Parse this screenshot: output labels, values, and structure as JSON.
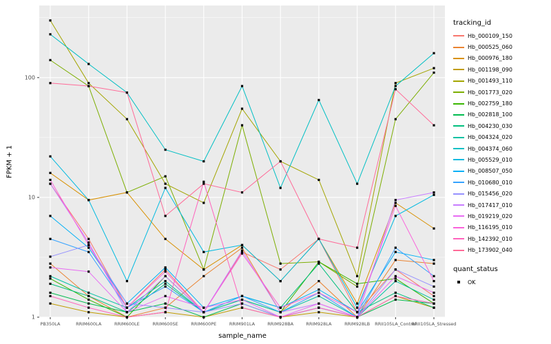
{
  "legend": {
    "color_title": "tracking_id",
    "shape_title": "quant_status",
    "shape_items": [
      {
        "label": "OK"
      }
    ]
  },
  "chart_data": {
    "type": "line",
    "title": "",
    "xlabel": "sample_name",
    "ylabel": "FPKM + 1",
    "y_scale": "log10",
    "ylim": [
      1,
      400
    ],
    "y_ticks": [
      1,
      10,
      100
    ],
    "y_minor_ticks": [
      3.1623,
      31.623,
      316.23
    ],
    "grid": true,
    "legend_position": "right",
    "panel_background": "#EBEBEB",
    "gridline_color": "#FFFFFF",
    "axis_text_color": "#4D4D4D",
    "point_shape": "square",
    "point_color": "#000000",
    "x": [
      "PB350LA",
      "RRIM600LA",
      "RRIM600LE",
      "RRIM600SE",
      "RRIM600PE",
      "RRIM901LA",
      "RRIM928BA",
      "RRIM928LA",
      "RRIM928LB",
      "RRII105LA_Control",
      "RRII105LA_Stressed"
    ],
    "series": [
      {
        "name": "Hb_000109_150",
        "color": "#F8766D",
        "values": [
          13,
          4.5,
          1.2,
          2.5,
          1.1,
          3.5,
          2.5,
          4.5,
          1.1,
          2.5,
          1.5
        ]
      },
      {
        "name": "Hb_000525_060",
        "color": "#EA8331",
        "values": [
          2.8,
          1.5,
          1.0,
          1.2,
          2.2,
          3.8,
          1.1,
          2.0,
          1.0,
          3.0,
          2.8
        ]
      },
      {
        "name": "Hb_000976_180",
        "color": "#D89000",
        "values": [
          16,
          9.5,
          11,
          4.5,
          2.5,
          4.0,
          2.0,
          4.5,
          1.3,
          9.0,
          5.5
        ]
      },
      {
        "name": "Hb_001198_090",
        "color": "#C09B00",
        "values": [
          1.3,
          1.1,
          1.0,
          1.1,
          1.0,
          1.2,
          1.0,
          1.1,
          1.0,
          1.5,
          1.2
        ]
      },
      {
        "name": "Hb_001493_110",
        "color": "#A3A500",
        "values": [
          300,
          90,
          45,
          13,
          9,
          55,
          20,
          14,
          2.2,
          90,
          120
        ]
      },
      {
        "name": "Hb_001773_020",
        "color": "#7CAE00",
        "values": [
          140,
          85,
          11,
          15,
          2.5,
          40,
          2.8,
          2.9,
          1.8,
          45,
          110
        ]
      },
      {
        "name": "Hb_002759_180",
        "color": "#39B600",
        "values": [
          2.1,
          1.4,
          1.0,
          2.2,
          1.1,
          1.4,
          1.1,
          2.9,
          1.9,
          2.1,
          1.3
        ]
      },
      {
        "name": "Hb_002818_100",
        "color": "#00BB4E",
        "values": [
          1.6,
          1.3,
          1.1,
          1.3,
          1.0,
          1.3,
          1.0,
          1.2,
          1.0,
          1.4,
          1.3
        ]
      },
      {
        "name": "Hb_004230_030",
        "color": "#00BF7D",
        "values": [
          1.9,
          1.5,
          1.1,
          1.9,
          1.1,
          1.5,
          1.2,
          2.8,
          1.1,
          1.6,
          1.2
        ]
      },
      {
        "name": "Hb_004324_020",
        "color": "#00C1A3",
        "values": [
          2.2,
          1.6,
          1.2,
          2.0,
          1.1,
          1.4,
          1.1,
          1.5,
          1.0,
          2.0,
          1.4
        ]
      },
      {
        "name": "Hb_004374_060",
        "color": "#00BFC4",
        "values": [
          230,
          130,
          75,
          25,
          20,
          85,
          12,
          65,
          13,
          85,
          160
        ]
      },
      {
        "name": "Hb_005529_010",
        "color": "#00BAE0",
        "values": [
          22,
          9.5,
          2.0,
          12,
          3.5,
          4.0,
          2.0,
          4.5,
          1.2,
          7.0,
          10.5
        ]
      },
      {
        "name": "Hb_008507_050",
        "color": "#00B0F6",
        "values": [
          7.0,
          3.8,
          1.3,
          2.6,
          1.2,
          1.5,
          1.2,
          1.7,
          1.1,
          3.5,
          3.0
        ]
      },
      {
        "name": "Hb_010680_010",
        "color": "#35A2FF",
        "values": [
          4.5,
          3.5,
          1.2,
          1.8,
          1.1,
          1.5,
          1.1,
          1.6,
          1.0,
          3.8,
          2.2
        ]
      },
      {
        "name": "Hb_015456_020",
        "color": "#9590FF",
        "values": [
          3.2,
          4.0,
          1.3,
          1.2,
          1.1,
          1.3,
          1.0,
          1.2,
          1.0,
          2.5,
          1.8
        ]
      },
      {
        "name": "Hb_017417_010",
        "color": "#C77CFF",
        "values": [
          13,
          4.2,
          1.1,
          2.2,
          1.1,
          3.6,
          1.1,
          1.3,
          1.0,
          9.5,
          11
        ]
      },
      {
        "name": "Hb_019219_020",
        "color": "#E76BF3",
        "values": [
          2.6,
          2.4,
          1.1,
          1.5,
          1.2,
          1.4,
          1.0,
          1.3,
          1.0,
          2.2,
          1.6
        ]
      },
      {
        "name": "Hb_116195_010",
        "color": "#FA62DB",
        "values": [
          14,
          4.0,
          1.2,
          2.4,
          1.1,
          3.4,
          1.2,
          1.6,
          1.1,
          8.5,
          2.0
        ]
      },
      {
        "name": "Hb_142392_010",
        "color": "#FF62BC",
        "values": [
          1.5,
          1.2,
          1.0,
          1.1,
          13.5,
          1.2,
          1.0,
          1.2,
          1.0,
          1.5,
          1.3
        ]
      },
      {
        "name": "Hb_173902_040",
        "color": "#FF6A98",
        "values": [
          90,
          85,
          75,
          7.0,
          13,
          11,
          20,
          4.5,
          3.8,
          80,
          40
        ]
      }
    ]
  }
}
